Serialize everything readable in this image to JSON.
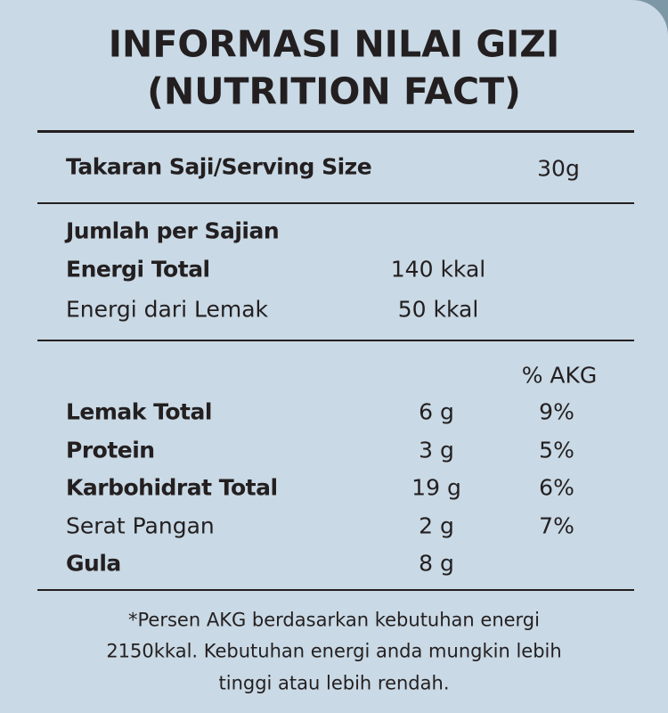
{
  "title": [
    "INFORMASI NILAI GIZI",
    "(NUTRITION FACT)"
  ],
  "serving": {
    "label": "Takaran Saji/Serving Size",
    "value": "30g"
  },
  "per_serving": {
    "heading": "Jumlah per Sajian",
    "rows": [
      [
        "Energi Total",
        "140 kkal"
      ],
      [
        "Energi dari Lemak",
        "50 kkal"
      ]
    ]
  },
  "nutrients": {
    "header": "% AKG",
    "rows": [
      [
        "Lemak Total",
        "6 g",
        "9%"
      ],
      [
        "Protein",
        "3 g",
        "5%"
      ],
      [
        "Karbohidrat Total",
        "19 g",
        "6%"
      ],
      [
        "Serat Pangan",
        "2 g",
        "7%"
      ],
      [
        "Gula",
        "8 g"
      ]
    ]
  },
  "footnote": [
    "*Persen AKG berdasarkan kebutuhan energi",
    "2150kkal. Kebutuhan energi anda mungkin lebih",
    "tinggi atau lebih rendah."
  ]
}
